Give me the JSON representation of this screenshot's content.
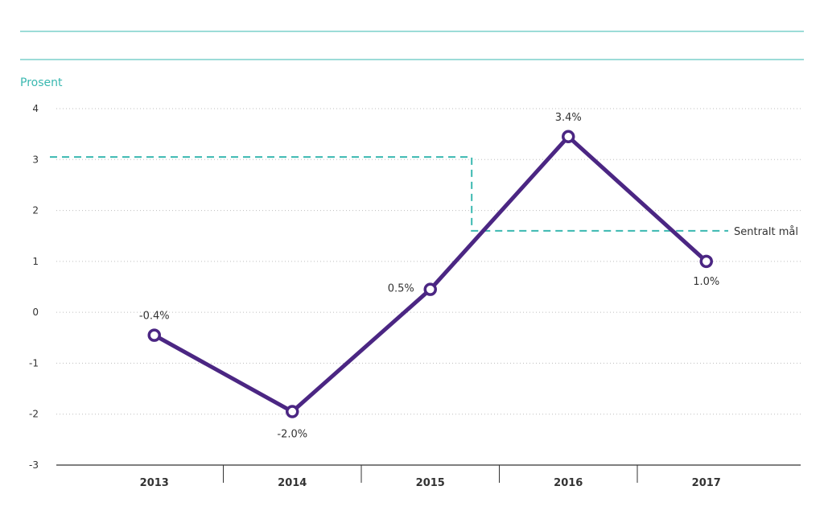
{
  "chart_data": {
    "type": "line",
    "ylabel": "Prosent",
    "ylim": [
      -3,
      4
    ],
    "yticks": [
      4,
      3,
      2,
      1,
      0,
      -1,
      -2,
      -3
    ],
    "categories": [
      "2013",
      "2014",
      "2015",
      "2016",
      "2017"
    ],
    "series": [
      {
        "values": [
          -0.45,
          -1.95,
          0.45,
          3.45,
          1.0
        ],
        "labels": [
          "-0.4%",
          "-2.0%",
          "0.5%",
          "3.4%",
          "1.0%"
        ],
        "color": "#4b2683"
      }
    ],
    "target": {
      "label": "Sentralt mål",
      "segments": [
        {
          "from": "start",
          "to": "2015.3",
          "value": 3.05
        },
        {
          "from": "2015.3",
          "to": "end",
          "value": 1.6
        }
      ],
      "color": "#3ab8b0"
    },
    "grid": true,
    "accent_color": "#3ab8b0"
  }
}
